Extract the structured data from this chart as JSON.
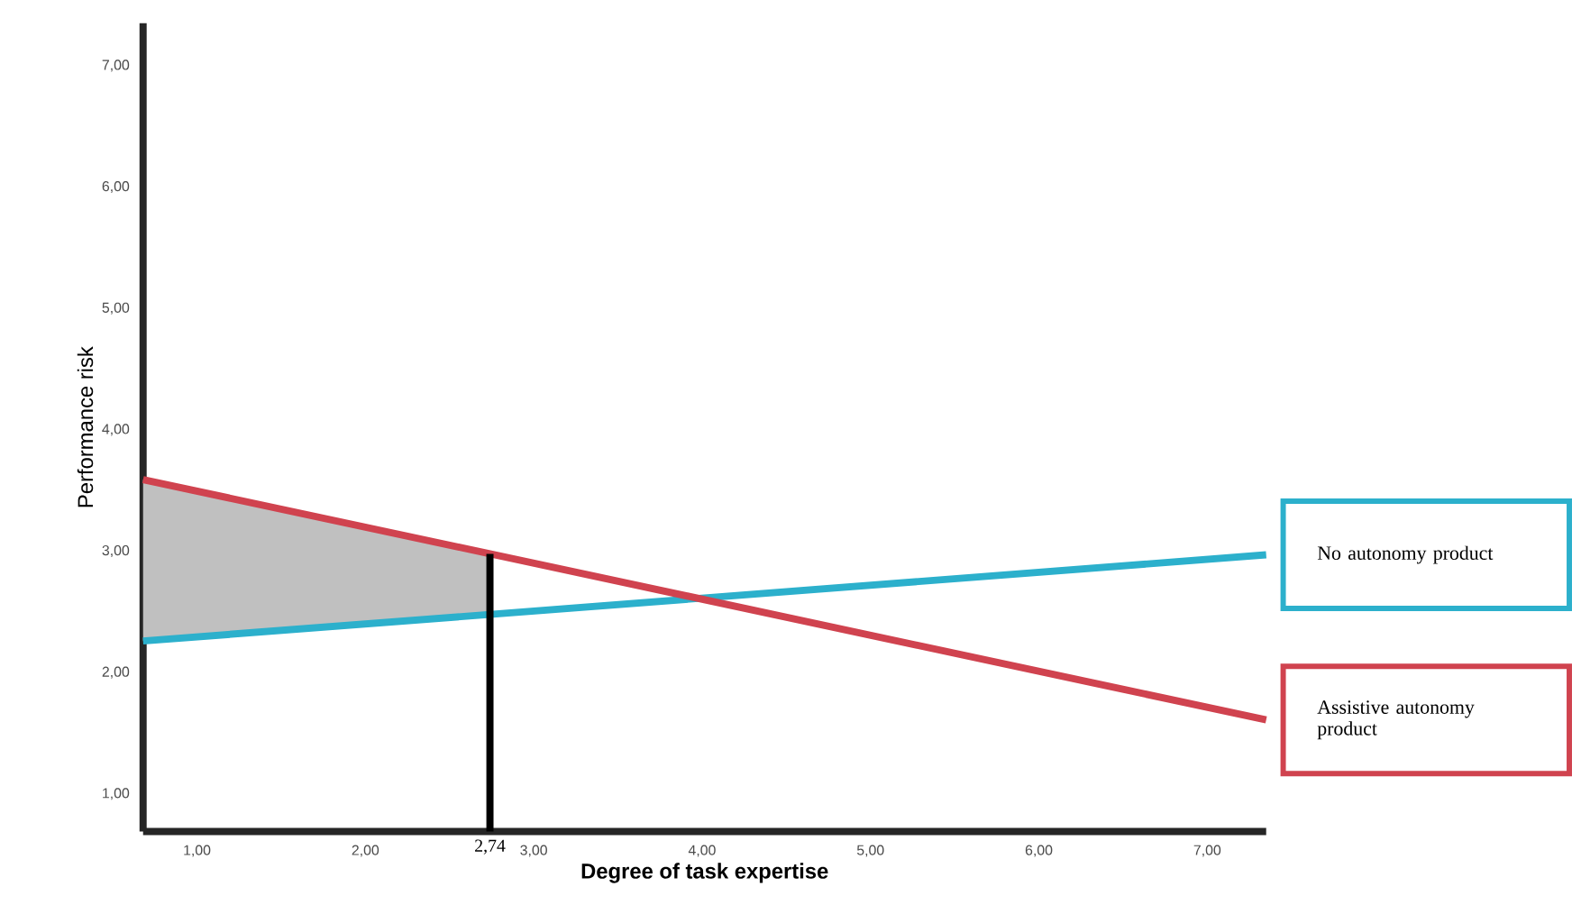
{
  "chart_data": {
    "type": "line",
    "xlabel": "Degree of task expertise",
    "ylabel": "Performance risk",
    "x": [
      0.68,
      7.35
    ],
    "series": [
      {
        "type": "area",
        "color": "#c0c0c0",
        "x": [
          0.68,
          2.74
        ],
        "values": [
          null,
          null
        ],
        "lower": [
          2.26,
          2.48
        ],
        "upper": [
          3.59,
          2.98
        ]
      },
      {
        "name": "No autonomy product",
        "color": "#2cb0cc",
        "values": [
          2.26,
          2.97
        ]
      },
      {
        "name": "Assistive autonomy product",
        "color": "#d0434f",
        "values": [
          3.59,
          1.61
        ]
      }
    ],
    "xlim": [
      0.68,
      7.35
    ],
    "ylim": [
      0.69,
      7.35
    ],
    "xticks": [
      {
        "value": 1,
        "label": "1,00"
      },
      {
        "value": 2,
        "label": "2,00"
      },
      {
        "value": 3,
        "label": "3,00"
      },
      {
        "value": 4,
        "label": "4,00"
      },
      {
        "value": 5,
        "label": "5,00"
      },
      {
        "value": 6,
        "label": "6,00"
      },
      {
        "value": 7,
        "label": "7,00"
      }
    ],
    "yticks": [
      {
        "value": 1,
        "label": "1,00"
      },
      {
        "value": 2,
        "label": "2,00"
      },
      {
        "value": 3,
        "label": "3,00"
      },
      {
        "value": 4,
        "label": "4,00"
      },
      {
        "value": 5,
        "label": "5,00"
      },
      {
        "value": 6,
        "label": "6,00"
      },
      {
        "value": 7,
        "label": "7,00"
      }
    ],
    "ref_lines": [
      {
        "axis": "x",
        "value": 2.74,
        "label": "2,74",
        "color": "#000000"
      }
    ],
    "grid": false,
    "marker": "none",
    "line_style": "solid"
  }
}
